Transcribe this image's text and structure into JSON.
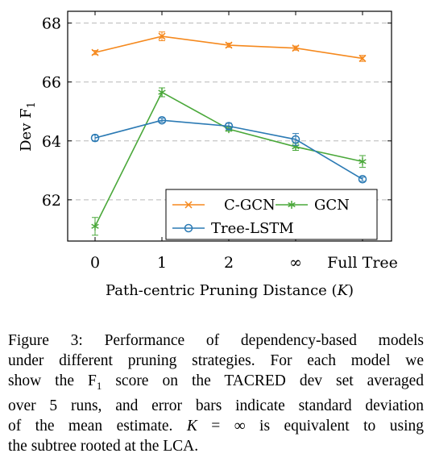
{
  "chart_data": {
    "type": "line",
    "categories": [
      "0",
      "1",
      "2",
      "∞",
      "Full Tree"
    ],
    "xlabel_prefix": "Path-centric Pruning Distance (",
    "xlabel_var": "K",
    "xlabel_suffix": ")",
    "ylabel_main": "Dev F",
    "ylabel_sub": "1",
    "ylim": [
      60.6,
      68.4
    ],
    "yticks": [
      62,
      64,
      66,
      68
    ],
    "grid": "horizontal-dashed",
    "legend_position": "bottom-right",
    "series": [
      {
        "name": "C-GCN",
        "color": "#f5891e",
        "marker": "x",
        "values": [
          67.0,
          67.55,
          67.25,
          67.15,
          66.8
        ],
        "errors": [
          0.07,
          0.15,
          0.07,
          0.07,
          0.1
        ]
      },
      {
        "name": "GCN",
        "color": "#4aa83a",
        "marker": "star",
        "values": [
          61.1,
          65.65,
          64.4,
          63.8,
          63.3
        ],
        "errors": [
          0.3,
          0.15,
          0.07,
          0.12,
          0.2
        ]
      },
      {
        "name": "Tree-LSTM",
        "color": "#2b7ab4",
        "marker": "circle",
        "values": [
          64.1,
          64.7,
          64.5,
          64.05,
          62.7
        ],
        "errors": [
          0.1,
          0.07,
          0.1,
          0.2,
          0.07
        ]
      }
    ]
  },
  "caption": {
    "lines": [
      [
        {
          "t": "Figure 3:  Performance of dependency-based models"
        }
      ],
      [
        {
          "t": "under different pruning strategies. For each model we"
        }
      ],
      [
        {
          "t": "show the F"
        },
        {
          "t": "1",
          "sub": true
        },
        {
          "t": " score on the TACRED dev set averaged"
        }
      ],
      [
        {
          "t": "over 5 runs, and error bars indicate standard deviation"
        }
      ],
      [
        {
          "t": "of the mean estimate.  "
        },
        {
          "t": "K",
          "italic": true
        },
        {
          "t": " = ∞ is equivalent to using"
        }
      ],
      [
        {
          "t": "the subtree rooted at the LCA."
        }
      ]
    ]
  }
}
